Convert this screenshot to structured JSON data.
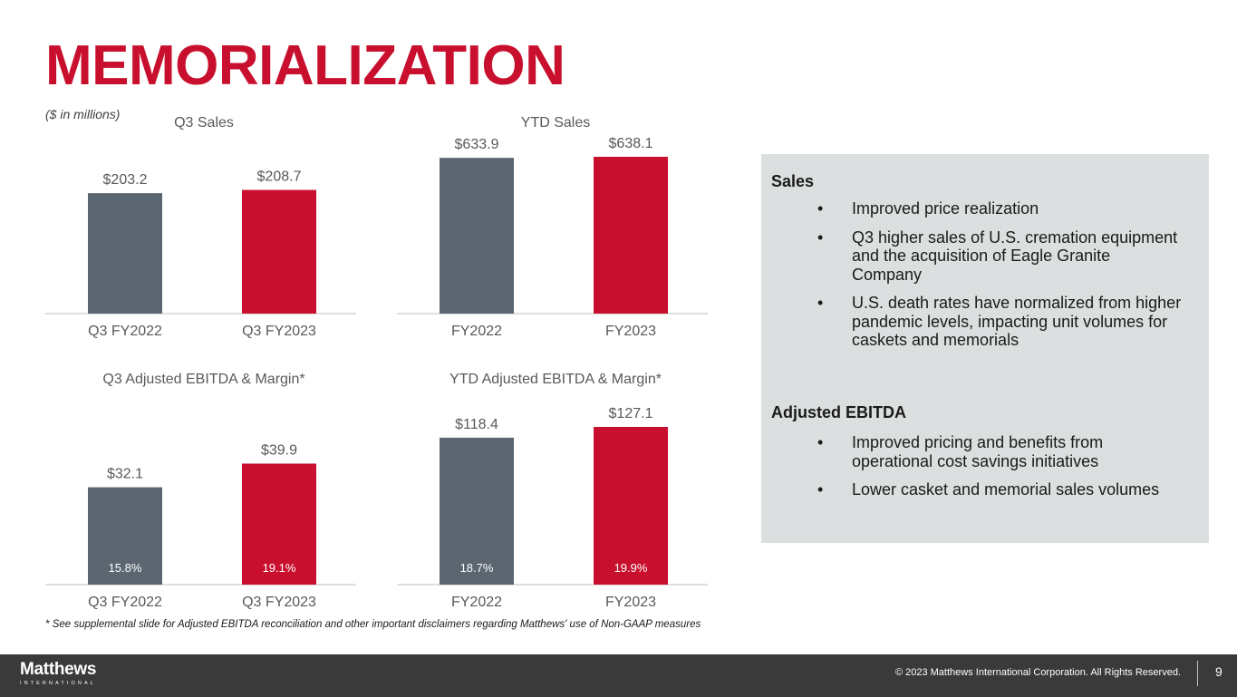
{
  "slide": {
    "title": "MEMORIALIZATION",
    "units_note": "($ in millions)",
    "footnote": "* See supplemental slide for Adjusted EBITDA reconciliation and other important disclaimers regarding Matthews' use of Non-GAAP measures"
  },
  "colors": {
    "prior": "#5b6670",
    "current": "#c8102e",
    "accent": "#c8102e",
    "panel": "#dcdfdf",
    "footer": "#3a3a3a"
  },
  "chart_data": [
    {
      "type": "bar",
      "title": "Q3 Sales",
      "categories": [
        "Q3 FY2022",
        "Q3 FY2023"
      ],
      "values": [
        203.2,
        208.7
      ],
      "value_labels": [
        "$203.2",
        "$208.7"
      ],
      "margin_labels": [],
      "ylim": [
        0,
        260
      ]
    },
    {
      "type": "bar",
      "title": "YTD Sales",
      "categories": [
        "FY2022",
        "FY2023"
      ],
      "values": [
        633.9,
        638.1
      ],
      "value_labels": [
        "$633.9",
        "$638.1"
      ],
      "margin_labels": [],
      "ylim": [
        0,
        638.1
      ]
    },
    {
      "type": "bar",
      "title": "Q3 Adjusted EBITDA & Margin*",
      "categories": [
        "Q3 FY2022",
        "Q3 FY2023"
      ],
      "values": [
        32.1,
        39.9
      ],
      "value_labels": [
        "$32.1",
        "$39.9"
      ],
      "margin_labels": [
        "15.8%",
        "19.1%"
      ],
      "ylim": [
        0,
        52
      ]
    },
    {
      "type": "bar",
      "title": "YTD Adjusted EBITDA & Margin*",
      "categories": [
        "FY2022",
        "FY2023"
      ],
      "values": [
        118.4,
        127.1
      ],
      "value_labels": [
        "$118.4",
        "$127.1"
      ],
      "margin_labels": [
        "18.7%",
        "19.9%"
      ],
      "ylim": [
        0,
        127.1
      ]
    }
  ],
  "commentary": {
    "sales_heading": "Sales",
    "sales_bullets": [
      "Improved price realization",
      "Q3 higher sales of U.S. cremation equipment and the acquisition of Eagle Granite Company",
      "U.S. death rates have normalized from higher pandemic levels, impacting unit volumes for caskets and memorials"
    ],
    "ebitda_heading": "Adjusted EBITDA",
    "ebitda_bullets": [
      "Improved pricing and benefits from operational cost savings initiatives",
      "Lower casket and memorial sales volumes"
    ],
    "bullet_char": "•"
  },
  "footer": {
    "logo_text": "Matthews",
    "logo_subtext": "INTERNATIONAL",
    "copyright": "© 2023 Matthews International Corporation. All Rights Reserved.",
    "page_number": "9"
  }
}
